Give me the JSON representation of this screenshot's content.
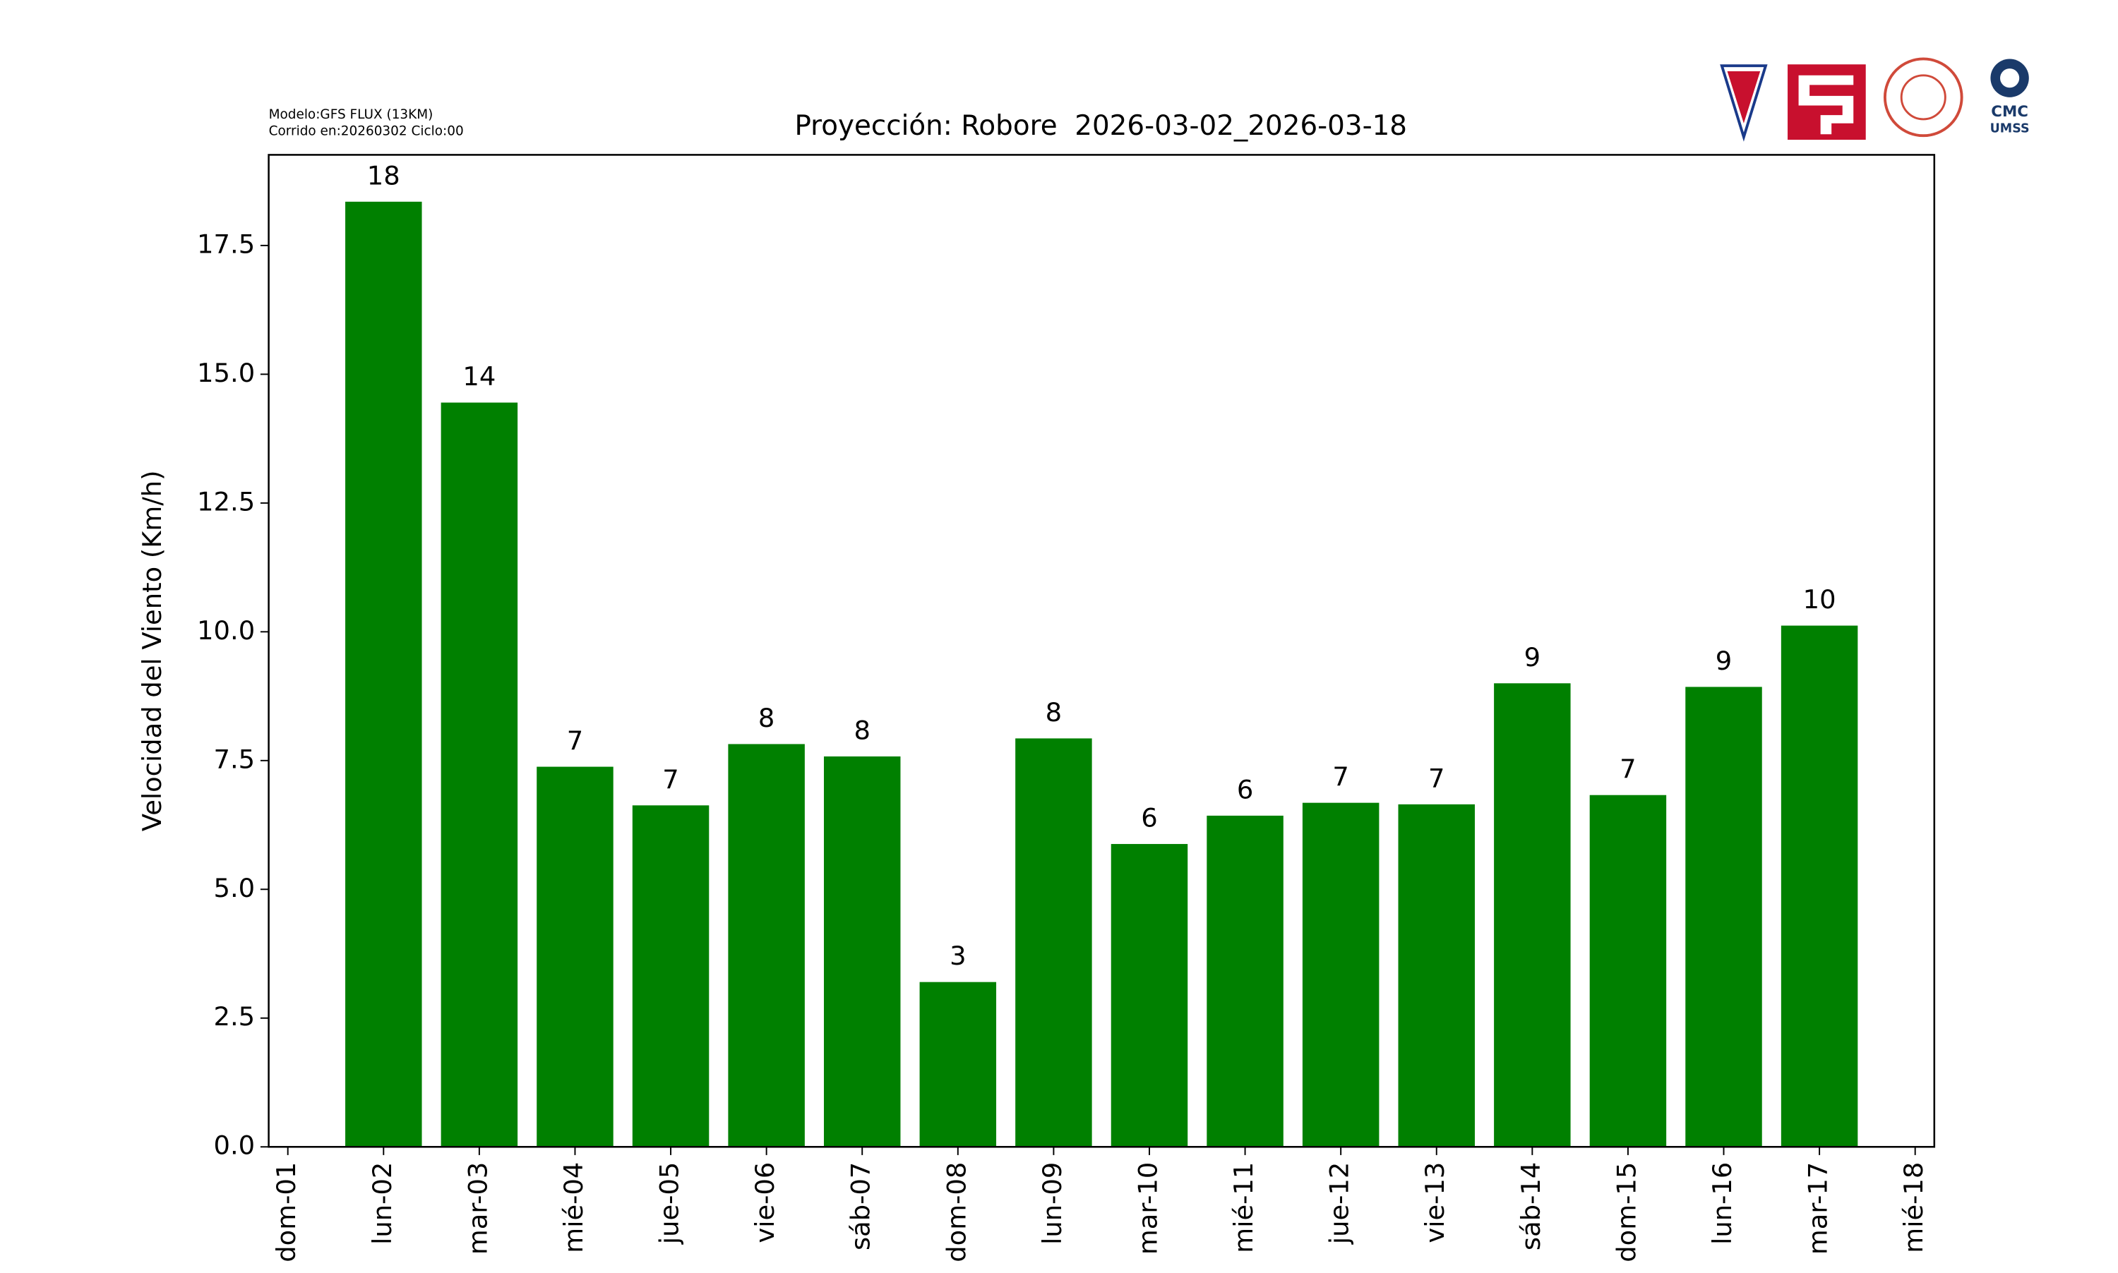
{
  "chart_data": {
    "type": "bar",
    "title": "Proyección: Robore  2026-03-02_2026-03-18",
    "model_lines": [
      "Modelo:GFS FLUX (13KM)",
      "Corrido en:20260302 Ciclo:00"
    ],
    "y_label": "Velocidad del Viento (Km/h)",
    "x": [
      2,
      3,
      4,
      5,
      6,
      7,
      8,
      9,
      10,
      11,
      12,
      13,
      14,
      15,
      16,
      17
    ],
    "values": [
      18.35,
      14.45,
      7.38,
      6.63,
      7.82,
      7.58,
      3.2,
      7.93,
      5.88,
      6.43,
      6.68,
      6.65,
      9.0,
      6.83,
      8.93,
      10.12
    ],
    "value_labels": [
      "18",
      "14",
      "7",
      "7",
      "8",
      "8",
      "3",
      "8",
      "6",
      "6",
      "7",
      "7",
      "9",
      "7",
      "9",
      "10"
    ],
    "color": "#008000",
    "xlim": [
      0.8,
      18.2
    ],
    "xticks": [
      {
        "value": 1,
        "label": "dom-01"
      },
      {
        "value": 2,
        "label": "lun-02"
      },
      {
        "value": 3,
        "label": "mar-03"
      },
      {
        "value": 4,
        "label": "mié-04"
      },
      {
        "value": 5,
        "label": "jue-05"
      },
      {
        "value": 6,
        "label": "vie-06"
      },
      {
        "value": 7,
        "label": "sáb-07"
      },
      {
        "value": 8,
        "label": "dom-08"
      },
      {
        "value": 9,
        "label": "lun-09"
      },
      {
        "value": 10,
        "label": "mar-10"
      },
      {
        "value": 11,
        "label": "mié-11"
      },
      {
        "value": 12,
        "label": "jue-12"
      },
      {
        "value": 13,
        "label": "vie-13"
      },
      {
        "value": 14,
        "label": "sáb-14"
      },
      {
        "value": 15,
        "label": "dom-15"
      },
      {
        "value": 16,
        "label": "lun-16"
      },
      {
        "value": 17,
        "label": "mar-17"
      },
      {
        "value": 18,
        "label": "mié-18"
      }
    ],
    "ylim": [
      0,
      19.26
    ],
    "yticks": [
      {
        "value": 0,
        "label": "0.0"
      },
      2.5,
      {
        "value": 5,
        "label": "5.0"
      },
      7.5,
      {
        "value": 10,
        "label": "10.0"
      },
      12.5,
      {
        "value": 15,
        "label": "15.0"
      },
      17.5
    ],
    "grid": false,
    "logos": {
      "cmc": "CMC",
      "umss": "UMSS"
    }
  }
}
